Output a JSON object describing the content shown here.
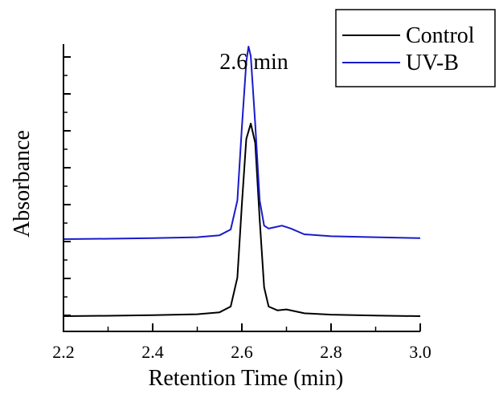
{
  "chart_data": {
    "type": "line",
    "xlabel": "Retention Time (min)",
    "ylabel": "Absorbance",
    "xlim": [
      2.2,
      3.0
    ],
    "x_ticks": [
      "2.2",
      "2.4",
      "2.6",
      "2.8",
      "3.0"
    ],
    "y_tick_labels": false,
    "grid": false,
    "legend_position": "top-right",
    "annotation": {
      "text": "2.6 min",
      "x": 2.6
    },
    "series": [
      {
        "name": "Control",
        "color": "#000000",
        "x": [
          2.2,
          2.3,
          2.4,
          2.5,
          2.55,
          2.575,
          2.59,
          2.6,
          2.61,
          2.62,
          2.63,
          2.64,
          2.65,
          2.66,
          2.68,
          2.7,
          2.72,
          2.74,
          2.8,
          2.9,
          3.0
        ],
        "y": [
          0.0,
          0.002,
          0.005,
          0.01,
          0.02,
          0.05,
          0.2,
          0.58,
          0.92,
          1.0,
          0.9,
          0.5,
          0.15,
          0.05,
          0.03,
          0.035,
          0.025,
          0.015,
          0.008,
          0.003,
          0.0
        ]
      },
      {
        "name": "UV-B",
        "color": "#1a1acc",
        "x": [
          2.2,
          2.3,
          2.4,
          2.5,
          2.55,
          2.575,
          2.59,
          2.6,
          2.61,
          2.615,
          2.62,
          2.63,
          2.64,
          2.65,
          2.66,
          2.67,
          2.69,
          2.71,
          2.74,
          2.8,
          2.9,
          3.0
        ],
        "y": [
          0.4,
          0.402,
          0.405,
          0.41,
          0.42,
          0.45,
          0.6,
          0.98,
          1.32,
          1.4,
          1.35,
          1.0,
          0.6,
          0.47,
          0.455,
          0.46,
          0.47,
          0.455,
          0.425,
          0.415,
          0.41,
          0.405
        ]
      }
    ]
  }
}
